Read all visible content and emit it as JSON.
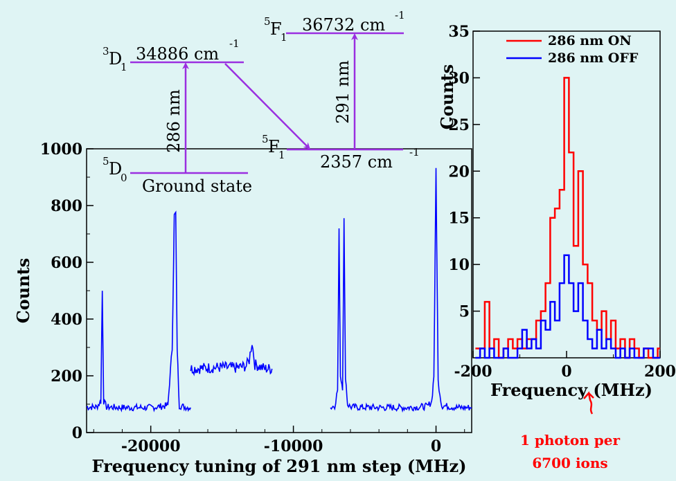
{
  "chart_data": [
    {
      "type": "line",
      "xlabel": "Frequency tuning of 291 nm step (MHz)",
      "ylabel": "Counts",
      "xlim": [
        -24500,
        2500
      ],
      "ylim": [
        0,
        1000
      ],
      "x_ticks": [
        -20000,
        -10000,
        0
      ],
      "x_tick_labels": [
        "-20000",
        "-10000",
        "0"
      ],
      "y_ticks": [
        0,
        200,
        400,
        600,
        800,
        1000
      ],
      "y_tick_labels": [
        "0",
        "200",
        "400",
        "600",
        "800",
        "1000"
      ],
      "color": "#0000ff",
      "segments": [
        {
          "x": [
            -24500,
            -23800,
            -23500,
            -23400,
            -23300,
            -23100,
            -22000,
            -20000,
            -18800,
            -18500,
            -18350,
            -18250,
            -18150,
            -18000,
            -17600,
            -17200
          ],
          "y": [
            90,
            90,
            110,
            500,
            110,
            90,
            88,
            88,
            95,
            300,
            760,
            770,
            300,
            95,
            90,
            88
          ]
        },
        {
          "x": [
            -17200,
            -16000,
            -15000,
            -14000,
            -13300,
            -13100,
            -12900,
            -12700,
            -12000,
            -11500
          ],
          "y": [
            225,
            228,
            230,
            228,
            235,
            255,
            320,
            240,
            225,
            225
          ]
        },
        {
          "x": [
            -7400,
            -7100,
            -6900,
            -6800,
            -6700,
            -6550,
            -6450,
            -6350,
            -6200,
            -6000,
            -4000,
            -2000,
            -600,
            -300,
            -150,
            0,
            150,
            400,
            1500,
            2500
          ],
          "y": [
            88,
            95,
            150,
            710,
            200,
            160,
            750,
            200,
            100,
            90,
            88,
            88,
            92,
            110,
            200,
            930,
            180,
            95,
            88,
            88
          ]
        }
      ]
    },
    {
      "type": "line",
      "step": true,
      "xlabel": "Frequency (MHz)",
      "ylabel": "Counts",
      "xlim": [
        -200,
        200
      ],
      "ylim": [
        0,
        35
      ],
      "x_ticks": [
        -200,
        0,
        200
      ],
      "x_tick_labels": [
        "-200",
        "0",
        "200"
      ],
      "y_ticks": [
        5,
        10,
        15,
        20,
        25,
        30,
        35
      ],
      "y_tick_labels": [
        "5",
        "10",
        "15",
        "20",
        "25",
        "30",
        "35"
      ],
      "legend_position": "top-right",
      "series": [
        {
          "name": "286 nm ON",
          "color": "#ff0000",
          "x": [
            -190,
            -180,
            -170,
            -160,
            -150,
            -140,
            -130,
            -120,
            -110,
            -100,
            -90,
            -80,
            -70,
            -60,
            -50,
            -40,
            -30,
            -20,
            -10,
            0,
            10,
            20,
            30,
            40,
            50,
            60,
            70,
            80,
            90,
            100,
            110,
            120,
            130,
            140,
            150,
            160,
            170,
            180,
            190,
            200
          ],
          "y": [
            1,
            1,
            6,
            1,
            2,
            0,
            1,
            2,
            1,
            2,
            1,
            2,
            2,
            4,
            5,
            8,
            15,
            16,
            18,
            30,
            22,
            12,
            20,
            10,
            8,
            4,
            3,
            5,
            2,
            4,
            1,
            2,
            0,
            2,
            1,
            0,
            1,
            0,
            0,
            1
          ]
        },
        {
          "name": "286 nm OFF",
          "color": "#0000ff",
          "x": [
            -190,
            -180,
            -170,
            -160,
            -150,
            -140,
            -130,
            -120,
            -110,
            -100,
            -90,
            -80,
            -70,
            -60,
            -50,
            -40,
            -30,
            -20,
            -10,
            0,
            10,
            20,
            30,
            40,
            50,
            60,
            70,
            80,
            90,
            100,
            110,
            120,
            130,
            140,
            150,
            160,
            170,
            180,
            190,
            200
          ],
          "y": [
            0,
            1,
            0,
            1,
            0,
            0,
            1,
            0,
            0,
            1,
            3,
            1,
            2,
            1,
            4,
            3,
            6,
            4,
            8,
            11,
            8,
            5,
            8,
            4,
            2,
            1,
            3,
            1,
            2,
            1,
            0,
            1,
            0,
            1,
            0,
            0,
            1,
            1,
            0,
            0
          ]
        }
      ],
      "annotation": {
        "line1": "1 photon per",
        "line2": "6700 ions",
        "color": "#ff0000"
      }
    }
  ],
  "level_diagram": {
    "color": "#9a2fe0",
    "levels": [
      {
        "id": "d1",
        "sup": "3",
        "base": "D",
        "sub": "1",
        "energy": "34886 cm",
        "unit_exp": "-1"
      },
      {
        "id": "f1_top",
        "sup": "5",
        "base": "F",
        "sub": "1",
        "energy": "36732 cm",
        "unit_exp": "-1"
      },
      {
        "id": "f1_low",
        "sup": "5",
        "base": "F",
        "sub": "1",
        "energy": "2357 cm",
        "unit_exp": "-1"
      },
      {
        "id": "d0",
        "sup": "5",
        "base": "D",
        "sub": "0",
        "energy": "Ground state",
        "unit_exp": ""
      }
    ],
    "transitions": [
      {
        "label": "286 nm"
      },
      {
        "label": "291 nm"
      }
    ]
  }
}
